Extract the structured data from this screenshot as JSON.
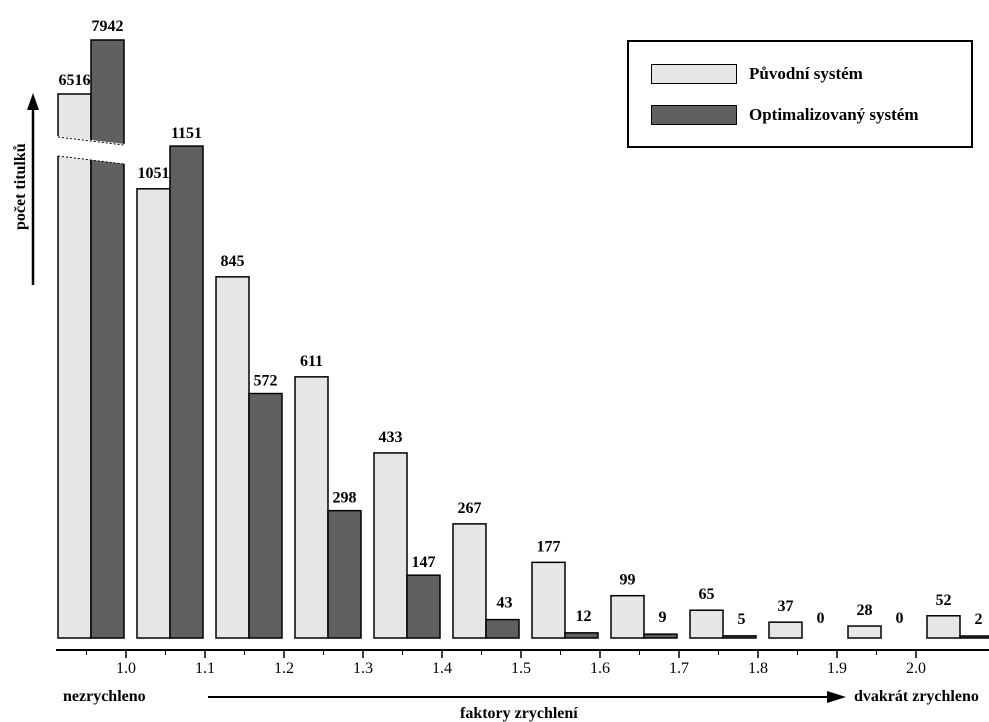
{
  "chart_data": {
    "type": "bar",
    "title": "",
    "ylabel": "počet titulků",
    "xlabel": "faktory zrychlení",
    "x_start_label": "nezrychleno",
    "x_end_label": "dvakrát zrychleno",
    "x_ticks": [
      "1.0",
      "1.1",
      "1.2",
      "1.3",
      "1.4",
      "1.5",
      "1.6",
      "1.7",
      "1.8",
      "1.9",
      "2.0"
    ],
    "y_axis_broken": true,
    "grid": false,
    "legend_position": "top-right",
    "series": [
      {
        "name": "Původní systém",
        "color": "#e6e6e6",
        "values": [
          6516,
          1051,
          845,
          611,
          433,
          267,
          177,
          99,
          65,
          37,
          28,
          52
        ]
      },
      {
        "name": "Optimalizovaný systém",
        "color": "#606060",
        "values": [
          7942,
          1151,
          572,
          298,
          147,
          43,
          12,
          9,
          5,
          0,
          0,
          2
        ]
      }
    ]
  }
}
